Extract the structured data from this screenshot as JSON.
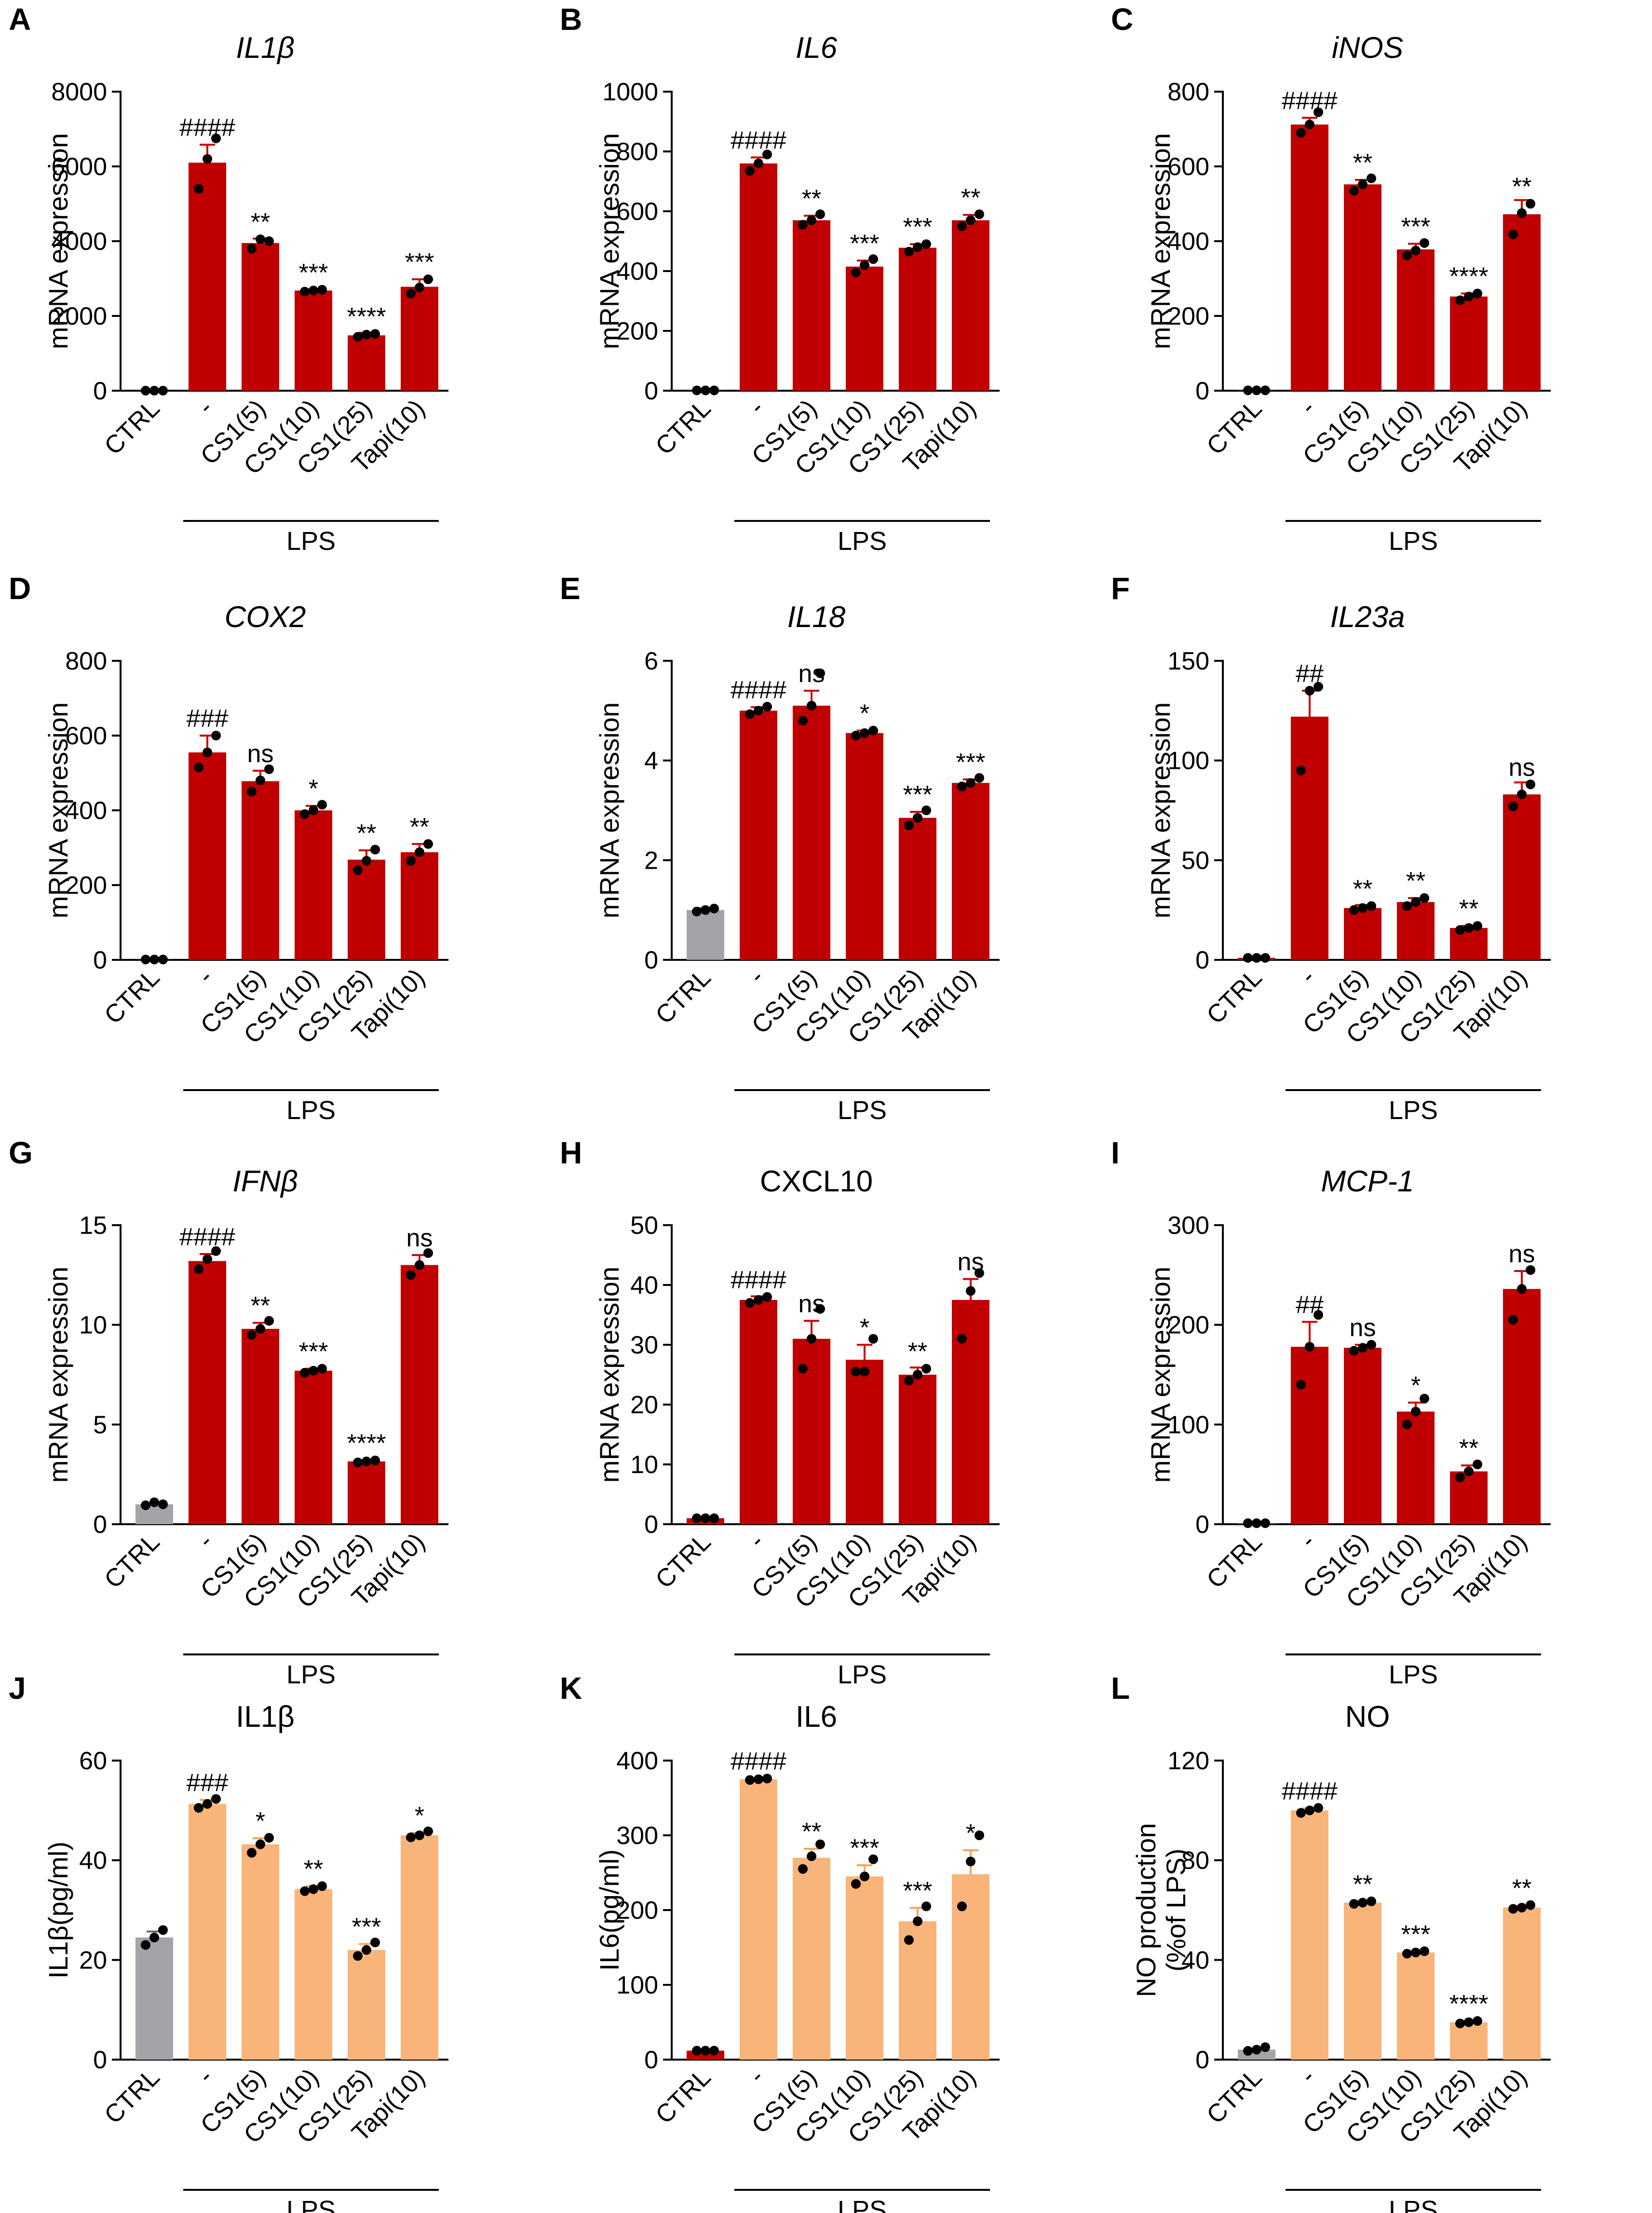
{
  "figure": {
    "group_label": "LPS",
    "colors": {
      "ctrl": "#a3a3a8",
      "lps_qpcr": "#c00000",
      "lps_elisa": "#f8b479",
      "dot": "#000000",
      "errorbar_qpcr": "#cc0000",
      "errorbar_elisa": "#f5a35c"
    }
  },
  "chart_data": [
    {
      "id": "A",
      "type": "bar",
      "title": "IL1β",
      "title_italic": true,
      "ylabel": [
        "mRNA expression"
      ],
      "ylim": [
        0,
        8000
      ],
      "yticks": [
        0,
        2000,
        4000,
        6000,
        8000
      ],
      "yticklabels": [
        "0",
        "2000",
        "4000",
        "6000",
        "8000"
      ],
      "categories": [
        "CTRL",
        "-",
        "CS1(5)",
        "CS1(10)",
        "CS1(25)",
        "Tapi(10)"
      ],
      "values": [
        1,
        6100,
        3950,
        2680,
        1480,
        2780
      ],
      "errors": [
        0,
        480,
        120,
        30,
        70,
        200
      ],
      "points": [
        [
          1,
          1,
          1
        ],
        [
          5400,
          6200,
          6750
        ],
        [
          3800,
          4050,
          4000
        ],
        [
          2650,
          2680,
          2700
        ],
        [
          1440,
          1500,
          1520
        ],
        [
          2600,
          2760,
          2980
        ]
      ],
      "significance": [
        "",
        "####",
        "**",
        "***",
        "****",
        "***"
      ],
      "ctrl_style": "qpcr"
    },
    {
      "id": "B",
      "type": "bar",
      "title": "IL6",
      "title_italic": true,
      "ylabel": [
        "mRNA expression"
      ],
      "ylim": [
        0,
        1000
      ],
      "yticks": [
        0,
        200,
        400,
        600,
        800,
        1000
      ],
      "yticklabels": [
        "0",
        "200",
        "400",
        "600",
        "800",
        "1000"
      ],
      "categories": [
        "CTRL",
        "-",
        "CS1(5)",
        "CS1(10)",
        "CS1(25)",
        "Tapi(10)"
      ],
      "values": [
        1,
        760,
        570,
        415,
        478,
        570
      ],
      "errors": [
        0,
        20,
        15,
        20,
        12,
        18
      ],
      "points": [
        [
          1,
          1,
          1
        ],
        [
          735,
          760,
          790
        ],
        [
          555,
          570,
          590
        ],
        [
          395,
          420,
          440
        ],
        [
          465,
          480,
          490
        ],
        [
          550,
          570,
          590
        ]
      ],
      "significance": [
        "",
        "####",
        "**",
        "***",
        "***",
        "**"
      ],
      "ctrl_style": "qpcr"
    },
    {
      "id": "C",
      "type": "bar",
      "title": "iNOS",
      "title_italic": true,
      "ylabel": [
        "mRNA expression"
      ],
      "ylim": [
        0,
        800
      ],
      "yticks": [
        0,
        200,
        400,
        600,
        800
      ],
      "yticklabels": [
        "0",
        "200",
        "400",
        "600",
        "800"
      ],
      "categories": [
        "CTRL",
        "-",
        "CS1(5)",
        "CS1(10)",
        "CS1(25)",
        "Tapi(10)"
      ],
      "values": [
        1,
        712,
        552,
        378,
        252,
        472
      ],
      "errors": [
        0,
        18,
        12,
        15,
        8,
        38
      ],
      "points": [
        [
          1,
          1,
          1
        ],
        [
          690,
          712,
          745
        ],
        [
          535,
          552,
          568
        ],
        [
          362,
          375,
          395
        ],
        [
          242,
          252,
          260
        ],
        [
          418,
          475,
          500
        ]
      ],
      "significance": [
        "",
        "####",
        "**",
        "***",
        "****",
        "**"
      ],
      "ctrl_style": "qpcr"
    },
    {
      "id": "D",
      "type": "bar",
      "title": "COX2",
      "title_italic": true,
      "ylabel": [
        "mRNA expression"
      ],
      "ylim": [
        0,
        800
      ],
      "yticks": [
        0,
        200,
        400,
        600,
        800
      ],
      "yticklabels": [
        "0",
        "200",
        "400",
        "600",
        "800"
      ],
      "categories": [
        "CTRL",
        "-",
        "CS1(5)",
        "CS1(10)",
        "CS1(25)",
        "Tapi(10)"
      ],
      "values": [
        1,
        555,
        478,
        400,
        268,
        288
      ],
      "errors": [
        0,
        45,
        28,
        12,
        25,
        22
      ],
      "points": [
        [
          1,
          1,
          1
        ],
        [
          515,
          555,
          600
        ],
        [
          450,
          480,
          510
        ],
        [
          390,
          400,
          415
        ],
        [
          240,
          265,
          295
        ],
        [
          265,
          288,
          310
        ]
      ],
      "significance": [
        "",
        "###",
        "ns",
        "*",
        "**",
        "**"
      ],
      "ctrl_style": "qpcr"
    },
    {
      "id": "E",
      "type": "bar",
      "title": "IL18",
      "title_italic": true,
      "ylabel": [
        "mRNA expression"
      ],
      "ylim": [
        0,
        6
      ],
      "yticks": [
        0,
        2,
        4,
        6
      ],
      "yticklabels": [
        "0",
        "2",
        "4",
        "6"
      ],
      "categories": [
        "CTRL",
        "-",
        "CS1(5)",
        "CS1(10)",
        "CS1(25)",
        "Tapi(10)"
      ],
      "values": [
        1.0,
        5.0,
        5.1,
        4.55,
        2.85,
        3.55
      ],
      "errors": [
        0.04,
        0.07,
        0.3,
        0.05,
        0.12,
        0.07
      ],
      "points": [
        [
          0.97,
          1.0,
          1.03
        ],
        [
          4.93,
          5.0,
          5.08
        ],
        [
          4.8,
          5.1,
          5.75
        ],
        [
          4.5,
          4.55,
          4.6
        ],
        [
          2.7,
          2.85,
          3.0
        ],
        [
          3.48,
          3.55,
          3.65
        ]
      ],
      "significance": [
        "",
        "####",
        "ns",
        "*",
        "***",
        "***"
      ],
      "ctrl_style": "grey"
    },
    {
      "id": "F",
      "type": "bar",
      "title": "IL23a",
      "title_italic": true,
      "ylabel": [
        "mRNA expression"
      ],
      "ylim": [
        0,
        150
      ],
      "yticks": [
        0,
        50,
        100,
        150
      ],
      "yticklabels": [
        "0",
        "50",
        "100",
        "150"
      ],
      "categories": [
        "CTRL",
        "-",
        "CS1(5)",
        "CS1(10)",
        "CS1(25)",
        "Tapi(10)"
      ],
      "values": [
        1,
        122,
        26,
        29,
        16,
        83
      ],
      "errors": [
        0,
        13,
        1.5,
        2,
        1,
        6
      ],
      "points": [
        [
          1,
          1,
          1
        ],
        [
          95,
          135,
          137
        ],
        [
          25,
          26,
          27
        ],
        [
          27,
          29,
          31
        ],
        [
          15,
          16,
          17
        ],
        [
          77,
          83,
          88
        ]
      ],
      "significance": [
        "",
        "##",
        "**",
        "**",
        "**",
        "ns"
      ],
      "ctrl_style": "qpcr"
    },
    {
      "id": "G",
      "type": "bar",
      "title": "IFNβ",
      "title_italic": true,
      "ylabel": [
        "mRNA expression"
      ],
      "ylim": [
        0,
        15
      ],
      "yticks": [
        0,
        5,
        10,
        15
      ],
      "yticklabels": [
        "0",
        "5",
        "10",
        "15"
      ],
      "categories": [
        "CTRL",
        "-",
        "CS1(5)",
        "CS1(10)",
        "CS1(25)",
        "Tapi(10)"
      ],
      "values": [
        1.0,
        13.2,
        9.8,
        7.7,
        3.15,
        13.0
      ],
      "errors": [
        0.05,
        0.35,
        0.3,
        0.1,
        0.05,
        0.5
      ],
      "points": [
        [
          0.95,
          1.1,
          1.0
        ],
        [
          12.8,
          13.3,
          13.7
        ],
        [
          9.5,
          9.8,
          10.2
        ],
        [
          7.6,
          7.7,
          7.8
        ],
        [
          3.1,
          3.15,
          3.2
        ],
        [
          12.5,
          13.0,
          13.6
        ]
      ],
      "significance": [
        "",
        "####",
        "**",
        "***",
        "****",
        "ns"
      ],
      "ctrl_style": "grey"
    },
    {
      "id": "H",
      "type": "bar",
      "title": "CXCL10",
      "title_italic": false,
      "ylabel": [
        "mRNA expression"
      ],
      "ylim": [
        0,
        50
      ],
      "yticks": [
        0,
        10,
        20,
        30,
        40,
        50
      ],
      "yticklabels": [
        "0",
        "10",
        "20",
        "30",
        "40",
        "50"
      ],
      "categories": [
        "CTRL",
        "-",
        "CS1(5)",
        "CS1(10)",
        "CS1(25)",
        "Tapi(10)"
      ],
      "values": [
        1,
        37.5,
        31,
        27.5,
        25,
        37.5
      ],
      "errors": [
        0,
        0.6,
        3,
        2.5,
        1.2,
        3.5
      ],
      "points": [
        [
          1,
          1,
          1
        ],
        [
          37,
          37.5,
          38
        ],
        [
          26,
          31,
          36
        ],
        [
          25.5,
          25.5,
          31
        ],
        [
          24,
          25,
          26
        ],
        [
          31,
          39,
          42
        ]
      ],
      "significance": [
        "",
        "####",
        "ns",
        "*",
        "**",
        "ns"
      ],
      "ctrl_style": "qpcr"
    },
    {
      "id": "I",
      "type": "bar",
      "title": "MCP-1",
      "title_italic": true,
      "ylabel": [
        "mRNA expression"
      ],
      "ylim": [
        0,
        300
      ],
      "yticks": [
        0,
        100,
        200,
        300
      ],
      "yticklabels": [
        "0",
        "100",
        "200",
        "300"
      ],
      "categories": [
        "CTRL",
        "-",
        "CS1(5)",
        "CS1(10)",
        "CS1(25)",
        "Tapi(10)"
      ],
      "values": [
        1,
        178,
        177,
        113,
        53,
        236
      ],
      "errors": [
        0,
        25,
        3,
        9,
        6,
        18
      ],
      "points": [
        [
          1,
          1,
          1
        ],
        [
          140,
          178,
          210
        ],
        [
          174,
          177,
          180
        ],
        [
          100,
          113,
          126
        ],
        [
          47,
          53,
          60
        ],
        [
          205,
          236,
          255
        ]
      ],
      "significance": [
        "",
        "##",
        "ns",
        "*",
        "**",
        "ns"
      ],
      "ctrl_style": "qpcr"
    },
    {
      "id": "J",
      "type": "bar",
      "title": "IL1β",
      "title_italic": false,
      "ylabel": [
        "IL1β(pg/ml)"
      ],
      "ylim": [
        0,
        60
      ],
      "yticks": [
        0,
        20,
        40,
        60
      ],
      "yticklabels": [
        "0",
        "20",
        "40",
        "60"
      ],
      "categories": [
        "CTRL",
        "-",
        "CS1(5)",
        "CS1(10)",
        "CS1(25)",
        "Tapi(10)"
      ],
      "values": [
        24.5,
        51.3,
        43.2,
        34.2,
        22,
        45
      ],
      "errors": [
        1.2,
        0.8,
        1.2,
        0.6,
        1.2,
        0.5
      ],
      "points": [
        [
          23,
          24.5,
          26
        ],
        [
          50.5,
          51.3,
          52.3
        ],
        [
          41.5,
          43.2,
          44.5
        ],
        [
          33.8,
          34.2,
          34.8
        ],
        [
          20.8,
          22,
          23.5
        ],
        [
          44.6,
          45,
          45.8
        ]
      ],
      "significance": [
        "",
        "###",
        "*",
        "**",
        "***",
        "*"
      ],
      "ctrl_style": "grey"
    },
    {
      "id": "K",
      "type": "bar",
      "title": "IL6",
      "title_italic": false,
      "ylabel": [
        "IL6(pg/ml)"
      ],
      "ylim": [
        0,
        400
      ],
      "yticks": [
        0,
        100,
        200,
        300,
        400
      ],
      "yticklabels": [
        "0",
        "100",
        "200",
        "300",
        "400"
      ],
      "categories": [
        "CTRL",
        "-",
        "CS1(5)",
        "CS1(10)",
        "CS1(25)",
        "Tapi(10)"
      ],
      "values": [
        12,
        375,
        270,
        245,
        185,
        248
      ],
      "errors": [
        0,
        1,
        12,
        15,
        18,
        32
      ],
      "points": [
        [
          12,
          12,
          12
        ],
        [
          374,
          375,
          376
        ],
        [
          255,
          272,
          288
        ],
        [
          235,
          245,
          268
        ],
        [
          160,
          185,
          205
        ],
        [
          205,
          265,
          300
        ]
      ],
      "significance": [
        "",
        "####",
        "**",
        "***",
        "***",
        "*"
      ],
      "ctrl_style": "qpcr"
    },
    {
      "id": "L",
      "type": "bar",
      "title": "NO",
      "title_italic": false,
      "ylabel": [
        "NO production",
        "(%of LPS)"
      ],
      "ylim": [
        0,
        120
      ],
      "yticks": [
        0,
        40,
        80,
        120
      ],
      "yticklabels": [
        "0",
        "40",
        "80",
        "120"
      ],
      "categories": [
        "CTRL",
        "-",
        "CS1(5)",
        "CS1(10)",
        "CS1(25)",
        "Tapi(10)"
      ],
      "values": [
        4,
        100,
        63,
        43,
        15,
        61
      ],
      "errors": [
        0.5,
        0.8,
        0.6,
        0.4,
        0.6,
        0.8
      ],
      "points": [
        [
          3.5,
          4,
          5
        ],
        [
          99,
          100,
          101
        ],
        [
          62.5,
          63,
          63.5
        ],
        [
          42.5,
          43,
          43.5
        ],
        [
          14.5,
          15,
          15.5
        ],
        [
          60.5,
          61,
          62
        ]
      ],
      "significance": [
        "",
        "####",
        "**",
        "***",
        "****",
        "**"
      ],
      "ctrl_style": "grey_small"
    }
  ]
}
